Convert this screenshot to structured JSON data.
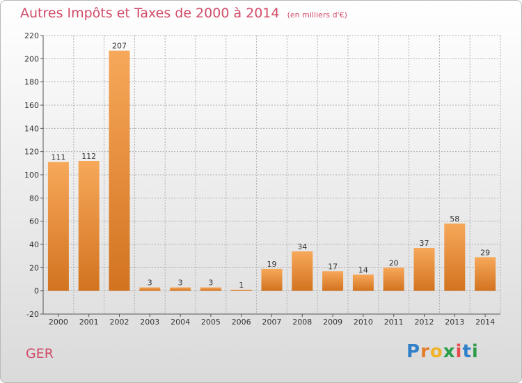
{
  "header": {
    "title": "Autres Impôts et Taxes de 2000 à 2014",
    "unit": "(en milliers d'€)"
  },
  "footer": {
    "commune": "GER",
    "logo": [
      "P",
      "r",
      "o",
      "x",
      "i",
      "t",
      "i"
    ]
  },
  "colors": {
    "bar_light": "#f7a85a",
    "bar_dark": "#d2731f",
    "accent": "#d14b67",
    "grid": "#b0b0b0"
  },
  "chart_data": {
    "type": "bar",
    "title": "Autres Impôts et Taxes de 2000 à 2014",
    "subtitle": "(en milliers d'€)",
    "xlabel": "",
    "ylabel": "",
    "categories": [
      "2000",
      "2001",
      "2002",
      "2003",
      "2004",
      "2005",
      "2006",
      "2007",
      "2008",
      "2009",
      "2010",
      "2011",
      "2012",
      "2013",
      "2014"
    ],
    "values": [
      111,
      112,
      207,
      3,
      3,
      3,
      1,
      19,
      34,
      17,
      14,
      20,
      37,
      58,
      29
    ],
    "ylim": [
      -20,
      220
    ],
    "yticks": [
      -20,
      0,
      20,
      40,
      60,
      80,
      100,
      120,
      140,
      160,
      180,
      200,
      220
    ],
    "grid": true,
    "legend": "none"
  }
}
